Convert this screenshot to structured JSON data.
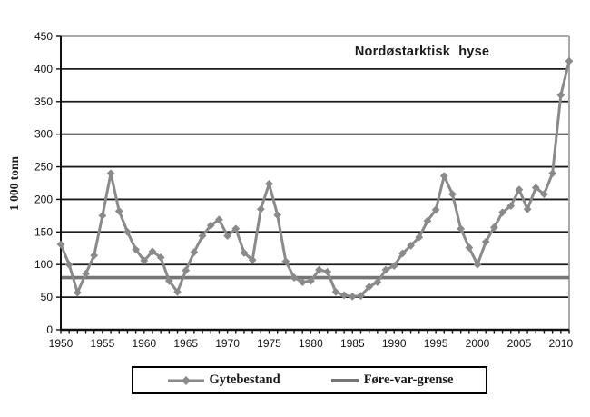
{
  "colors": {
    "series": "#8a8a8a",
    "threshold": "#757575",
    "grid": "#1b1b1b",
    "frame": "#a9a9a9",
    "axis": "#111111",
    "text": "#111111"
  },
  "chart_data": {
    "type": "line",
    "title": "Nordøstarktisk hyse",
    "ylabel": "1 000 tonn",
    "ylim": [
      0,
      450
    ],
    "yticks": [
      0,
      50,
      100,
      150,
      200,
      250,
      300,
      350,
      400,
      450
    ],
    "xlim": [
      1950,
      2011
    ],
    "xticks": [
      1950,
      1955,
      1960,
      1965,
      1970,
      1975,
      1980,
      1985,
      1990,
      1995,
      2000,
      2005,
      2010
    ],
    "grid": "horizontal-black",
    "legend_position": "bottom-boxed",
    "series": [
      {
        "name": "Gytebestand",
        "type": "line-diamond",
        "x_start": 1950,
        "values": [
          131,
          100,
          57,
          86,
          114,
          175,
          240,
          182,
          150,
          123,
          106,
          120,
          111,
          75,
          58,
          91,
          119,
          144,
          160,
          169,
          144,
          155,
          118,
          107,
          185,
          224,
          176,
          105,
          80,
          73,
          75,
          92,
          89,
          58,
          53,
          51,
          52,
          66,
          73,
          92,
          98,
          117,
          129,
          142,
          167,
          184,
          236,
          208,
          155,
          126,
          100,
          135,
          157,
          180,
          190,
          215,
          185,
          218,
          208,
          240,
          360,
          412
        ]
      },
      {
        "name": "Føre-var-grense",
        "type": "threshold-line",
        "constant": 80
      }
    ]
  }
}
